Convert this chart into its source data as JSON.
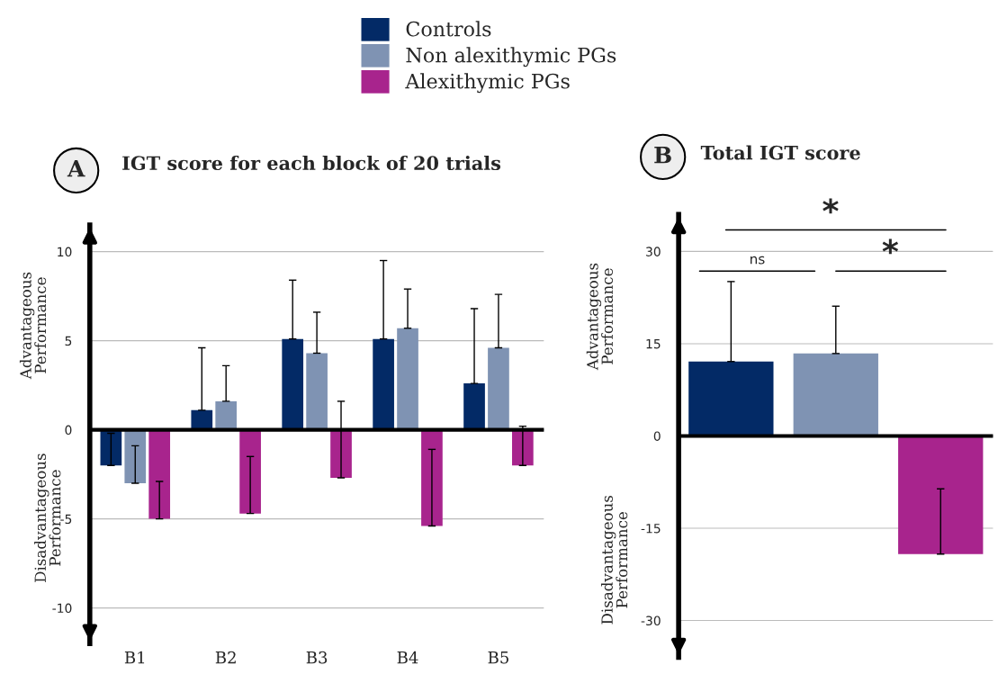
{
  "chart_data": [
    {
      "type": "bar",
      "title": "IGT score for each block of 20 trials",
      "ylabel": "Advantageous\nPerformance",
      "annotations": [
        "A",
        "Disadvantageous\nPerformance"
      ],
      "categories": [
        "B1",
        "B2",
        "B3",
        "B4",
        "B5"
      ],
      "series": [
        {
          "name": "Controls",
          "color": "#032a66",
          "values": [
            -2.0,
            1.1,
            5.1,
            5.1,
            2.6
          ],
          "errors": [
            [
              -2.0,
              -0.2
            ],
            [
              1.1,
              4.6
            ],
            [
              5.1,
              8.4
            ],
            [
              5.1,
              9.5
            ],
            [
              2.6,
              6.8
            ]
          ]
        },
        {
          "name": "Non alexithymic PGs",
          "color": "#7f93b3",
          "values": [
            -3.0,
            1.6,
            4.3,
            5.7,
            4.6
          ],
          "errors": [
            [
              -3.0,
              -0.9
            ],
            [
              1.6,
              3.6
            ],
            [
              4.3,
              6.6
            ],
            [
              5.7,
              7.9
            ],
            [
              4.6,
              7.6
            ]
          ]
        },
        {
          "name": "Alexithymic PGs",
          "color": "#a8248d",
          "values": [
            -5.0,
            -4.7,
            -2.7,
            -5.4,
            -2.0
          ],
          "errors": [
            [
              -5.0,
              -2.9
            ],
            [
              -4.7,
              -1.5
            ],
            [
              -2.7,
              1.6
            ],
            [
              -5.4,
              -1.1
            ],
            [
              -2.0,
              0.2
            ]
          ]
        }
      ],
      "ylim": [
        -12,
        11.5
      ],
      "yticks": [
        -10,
        -5,
        0,
        5,
        10
      ],
      "grid": "y",
      "legend": "top"
    },
    {
      "type": "bar",
      "title": "Total IGT score",
      "ylabel": "Advantageous\nPerformance",
      "annotations": [
        "B",
        "Disadvantageous\nPerformance",
        "*",
        "ns",
        "*"
      ],
      "categories": [
        null,
        null,
        null
      ],
      "values": [
        12.1,
        13.4,
        -19.2
      ],
      "colors": [
        "#032a66",
        "#7f93b3",
        "#a8248d"
      ],
      "errors": [
        [
          12.1,
          25.1
        ],
        [
          13.4,
          21.1
        ],
        [
          -19.2,
          -8.6
        ]
      ],
      "ylim": [
        -36,
        36
      ],
      "yticks": [
        -30,
        -15,
        0,
        15,
        30
      ],
      "grid": "y"
    }
  ]
}
